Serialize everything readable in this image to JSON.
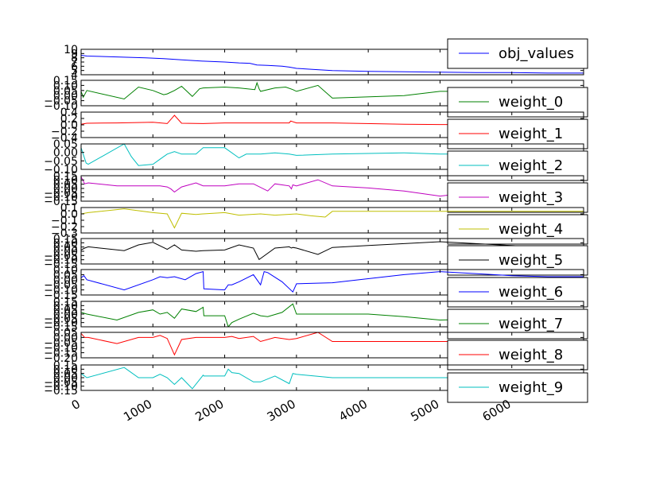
{
  "chart_data": {
    "type": "line",
    "x_range": [
      0,
      7000
    ],
    "x_ticks": [
      0,
      1000,
      2000,
      3000,
      4000,
      5000,
      6000
    ],
    "x_tick_labels": [
      "0",
      "1000",
      "2000",
      "3000",
      "4000",
      "5000",
      "6000"
    ],
    "legend_placement": "right",
    "grid": false,
    "panels": [
      {
        "name": "obj_values",
        "color": "#0000ff",
        "ylim": [
          4,
          10
        ],
        "y_tick_labels": [
          "4",
          "5",
          "6",
          "7",
          "8",
          "9",
          "10"
        ],
        "x": [
          0,
          80,
          500,
          900,
          1150,
          1400,
          1600,
          1700,
          2000,
          2200,
          2350,
          2450,
          2600,
          2800,
          2900,
          3000,
          3200,
          3500,
          4000,
          4500,
          5000,
          5500,
          6000,
          6500,
          7000
        ],
        "y": [
          8.6,
          8.4,
          8.2,
          8.0,
          7.8,
          7.5,
          7.3,
          7.2,
          7.0,
          6.8,
          6.7,
          6.3,
          6.2,
          6.0,
          5.8,
          5.5,
          5.3,
          5.0,
          4.8,
          4.7,
          4.6,
          4.5,
          4.5,
          4.4,
          4.4
        ]
      },
      {
        "name": "weight_0",
        "color": "#008000",
        "ylim": [
          -0.15,
          0.15
        ],
        "y_tick_labels": [
          "−0.10",
          "−0.05",
          "0.00",
          "0.05",
          "0.10",
          "0.15"
        ],
        "x": [
          0,
          30,
          80,
          600,
          800,
          1000,
          1150,
          1200,
          1300,
          1400,
          1550,
          1650,
          1700,
          2000,
          2200,
          2420,
          2450,
          2480,
          2500,
          2700,
          2850,
          2950,
          3000,
          3300,
          3500,
          4500,
          5000,
          5500,
          6000,
          6500,
          7000
        ],
        "y": [
          0.02,
          -0.05,
          0.03,
          -0.07,
          0.07,
          0.03,
          -0.02,
          -0.01,
          0.03,
          0.08,
          -0.04,
          0.05,
          0.06,
          0.07,
          0.06,
          0.04,
          0.12,
          0.05,
          0.02,
          0.06,
          0.07,
          0.04,
          0.02,
          0.09,
          -0.06,
          -0.03,
          0.02,
          0.02,
          0.03,
          0.02,
          0.03
        ]
      },
      {
        "name": "weight_1",
        "color": "#ff0000",
        "ylim": [
          -0.4,
          0.4
        ],
        "y_tick_labels": [
          "−0.4",
          "−0.2",
          "0.0",
          "0.2",
          "0.4"
        ],
        "x": [
          0,
          80,
          500,
          1000,
          1200,
          1300,
          1400,
          1700,
          2000,
          2500,
          2900,
          2920,
          3000,
          3500,
          4500,
          5000,
          6000,
          7000
        ],
        "y": [
          0.02,
          0.05,
          0.06,
          0.08,
          0.04,
          0.3,
          0.05,
          0.04,
          0.06,
          0.06,
          0.06,
          0.12,
          0.06,
          0.06,
          0.02,
          0.01,
          0.01,
          0.02
        ]
      },
      {
        "name": "weight_2",
        "color": "#00bfbf",
        "ylim": [
          -0.1,
          0.1
        ],
        "y_tick_labels": [
          "−0.10",
          "−0.05",
          "0.00",
          "0.05"
        ],
        "x": [
          0,
          70,
          100,
          600,
          700,
          800,
          1000,
          1100,
          1200,
          1300,
          1400,
          1600,
          1700,
          2000,
          2200,
          2300,
          2500,
          2700,
          2900,
          3000,
          3500,
          4500,
          5000,
          5500,
          6000,
          7000
        ],
        "y": [
          0.07,
          -0.05,
          -0.06,
          0.1,
          0.0,
          -0.07,
          -0.06,
          -0.02,
          0.02,
          0.04,
          0.02,
          0.02,
          0.07,
          0.07,
          -0.01,
          0.02,
          0.02,
          0.03,
          0.02,
          0.01,
          0.02,
          0.03,
          0.02,
          0.02,
          0.02,
          0.02
        ]
      },
      {
        "name": "weight_3",
        "color": "#bf00bf",
        "ylim": [
          -0.15,
          0.1
        ],
        "y_tick_labels": [
          "−0.15",
          "−0.10",
          "−0.05",
          "0.00",
          "0.05",
          "0.10",
          "0.15"
        ],
        "x": [
          0,
          50,
          100,
          500,
          1000,
          1100,
          1200,
          1250,
          1300,
          1400,
          1600,
          1700,
          2000,
          2200,
          2400,
          2600,
          2700,
          2900,
          2930,
          2950,
          3000,
          3300,
          3500,
          4000,
          4500,
          5000,
          5500,
          6000,
          6500,
          7000
        ],
        "y": [
          0.09,
          0.02,
          0.03,
          0.0,
          0.0,
          0.0,
          -0.01,
          -0.03,
          -0.06,
          -0.01,
          0.03,
          0.0,
          0.0,
          0.02,
          0.02,
          -0.05,
          0.02,
          0.0,
          -0.03,
          0.01,
          0.0,
          0.06,
          0.0,
          -0.02,
          -0.05,
          -0.1,
          -0.06,
          -0.04,
          -0.02,
          0.02
        ]
      },
      {
        "name": "weight_4",
        "color": "#bfbf00",
        "ylim": [
          -0.3,
          0.1
        ],
        "y_tick_labels": [
          "−0.3",
          "−0.2",
          "−0.1",
          "0.0",
          "0.1"
        ],
        "x": [
          0,
          100,
          600,
          1000,
          1200,
          1300,
          1400,
          1600,
          1700,
          2000,
          2200,
          2500,
          2700,
          3000,
          3200,
          3400,
          3500,
          4000,
          5000,
          6000,
          7000
        ],
        "y": [
          0.0,
          0.02,
          0.08,
          0.02,
          0.0,
          -0.22,
          0.01,
          -0.01,
          0.0,
          0.02,
          -0.02,
          0.0,
          -0.02,
          0.0,
          -0.03,
          -0.05,
          0.04,
          0.04,
          0.04,
          0.04,
          0.04
        ]
      },
      {
        "name": "weight_5",
        "color": "#000000",
        "ylim": [
          -0.2,
          0.2
        ],
        "y_tick_labels": [
          "−0.15",
          "−0.10",
          "−0.05",
          "0.00",
          "0.05",
          "0.10",
          "0.15"
        ],
        "x": [
          0,
          50,
          100,
          600,
          800,
          1000,
          1200,
          1300,
          1400,
          1600,
          1700,
          2000,
          2200,
          2400,
          2480,
          2700,
          2900,
          2930,
          2950,
          3000,
          3300,
          3500,
          4000,
          4500,
          5000,
          5500,
          6000,
          6500,
          7000
        ],
        "y": [
          0.02,
          0.05,
          0.07,
          0.01,
          0.1,
          0.14,
          0.03,
          0.1,
          0.02,
          0.0,
          0.01,
          0.02,
          0.1,
          0.05,
          -0.13,
          0.05,
          0.07,
          0.05,
          0.06,
          0.05,
          -0.05,
          0.06,
          0.09,
          0.12,
          0.15,
          0.12,
          0.09,
          0.06,
          0.04
        ]
      },
      {
        "name": "weight_6",
        "color": "#0000ff",
        "ylim": [
          -0.15,
          0.1
        ],
        "y_tick_labels": [
          "−0.15",
          "−0.10",
          "−0.05",
          "0.00",
          "0.05",
          "0.10"
        ],
        "x": [
          0,
          40,
          80,
          600,
          1000,
          1100,
          1200,
          1300,
          1450,
          1600,
          1700,
          1710,
          2000,
          2050,
          2100,
          2200,
          2400,
          2500,
          2550,
          2600,
          2800,
          2950,
          3000,
          3500,
          4000,
          4500,
          5000,
          5500,
          6000,
          6500,
          7000
        ],
        "y": [
          0.02,
          0.04,
          0.0,
          -0.1,
          0.0,
          0.03,
          0.02,
          0.03,
          0.0,
          0.06,
          0.08,
          -0.09,
          -0.1,
          -0.05,
          -0.05,
          -0.02,
          0.05,
          -0.05,
          0.08,
          0.07,
          -0.02,
          -0.12,
          -0.04,
          -0.03,
          0.01,
          0.05,
          0.08,
          0.06,
          0.04,
          0.03,
          0.03
        ]
      },
      {
        "name": "weight_7",
        "color": "#008000",
        "ylim": [
          -0.15,
          0.15
        ],
        "y_tick_labels": [
          "−0.15",
          "−0.10",
          "−0.05",
          "0.00",
          "0.05",
          "0.10",
          "0.15"
        ],
        "x": [
          0,
          80,
          500,
          800,
          1000,
          1100,
          1200,
          1300,
          1400,
          1600,
          1700,
          1710,
          2000,
          2050,
          2100,
          2200,
          2400,
          2500,
          2600,
          2800,
          2950,
          3000,
          3500,
          4000,
          4500,
          5000,
          5500,
          6000,
          6500,
          7000
        ],
        "y": [
          0.02,
          0.0,
          -0.07,
          0.02,
          0.05,
          0.0,
          0.02,
          -0.05,
          0.06,
          0.03,
          0.08,
          -0.02,
          -0.02,
          -0.15,
          -0.1,
          -0.06,
          0.01,
          -0.02,
          -0.03,
          0.02,
          0.12,
          0.0,
          0.0,
          0.0,
          -0.03,
          -0.07,
          -0.06,
          -0.04,
          -0.03,
          -0.02
        ]
      },
      {
        "name": "weight_8",
        "color": "#ff0000",
        "ylim": [
          -0.2,
          0.05
        ],
        "y_tick_labels": [
          "−0.20",
          "−0.15",
          "−0.10",
          "−0.05",
          "0.00",
          "0.05"
        ],
        "x": [
          0,
          50,
          100,
          500,
          800,
          1000,
          1100,
          1200,
          1300,
          1400,
          1600,
          1700,
          2000,
          2100,
          2200,
          2400,
          2500,
          2700,
          2900,
          3000,
          3300,
          3500,
          4000,
          4500,
          5000,
          5500,
          6000,
          6500,
          7000
        ],
        "y": [
          0.04,
          0.0,
          0.0,
          -0.06,
          0.0,
          0.0,
          0.02,
          -0.01,
          -0.17,
          -0.02,
          0.0,
          0.0,
          0.0,
          0.01,
          -0.01,
          0.01,
          -0.04,
          0.0,
          -0.02,
          -0.01,
          0.05,
          -0.04,
          -0.04,
          -0.04,
          -0.04,
          -0.04,
          -0.04,
          -0.04,
          -0.04
        ]
      },
      {
        "name": "weight_9",
        "color": "#00bfbf",
        "ylim": [
          -0.15,
          0.15
        ],
        "y_tick_labels": [
          "−0.15",
          "−0.10",
          "−0.05",
          "0.00",
          "0.05",
          "0.10",
          "0.15"
        ],
        "x": [
          0,
          80,
          600,
          800,
          1000,
          1100,
          1200,
          1300,
          1400,
          1550,
          1700,
          1710,
          2000,
          2050,
          2100,
          2200,
          2400,
          2500,
          2700,
          2900,
          2950,
          3000,
          3500,
          4000,
          4500,
          5000,
          5500,
          6000,
          6500,
          7000
        ],
        "y": [
          0.05,
          0.0,
          0.12,
          0.0,
          0.0,
          0.04,
          0.0,
          -0.08,
          0.0,
          -0.13,
          0.03,
          0.02,
          0.02,
          0.1,
          0.06,
          0.05,
          -0.05,
          -0.05,
          0.02,
          -0.07,
          0.05,
          0.04,
          0.0,
          0.0,
          0.0,
          0.0,
          0.0,
          0.0,
          0.0,
          0.0
        ]
      }
    ]
  }
}
